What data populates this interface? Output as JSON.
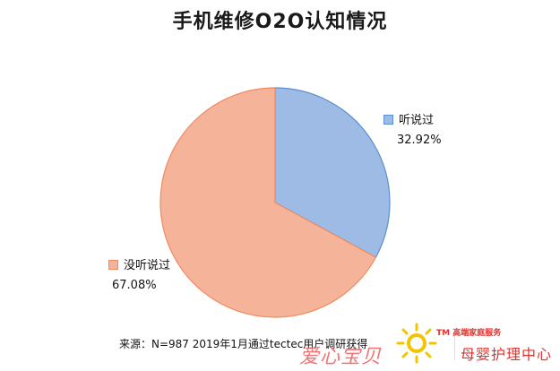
{
  "chart_data": {
    "type": "pie",
    "title": "手机维修O2O认知情况",
    "slices": [
      {
        "label": "听说过",
        "value": 32.92,
        "value_label": "32.92%",
        "color": "#9dbbe5",
        "stroke": "#5b8fd0"
      },
      {
        "label": "没听说过",
        "value": 67.08,
        "value_label": "67.08%",
        "color": "#f5b49a",
        "stroke": "#f08a60"
      }
    ],
    "start_angle_deg": 0,
    "direction": "clockwise",
    "legend_placement": "beside-slices"
  },
  "source_note": "来源：N=987 2019年1月通过tectec用户调研获得",
  "watermark": {
    "text_left": "爱心宝贝",
    "brand_top": "TM 高端家庭服务",
    "brand_bottom": "母婴护理中心",
    "logo_color": "#f5c400",
    "text_color": "#e0322f"
  }
}
